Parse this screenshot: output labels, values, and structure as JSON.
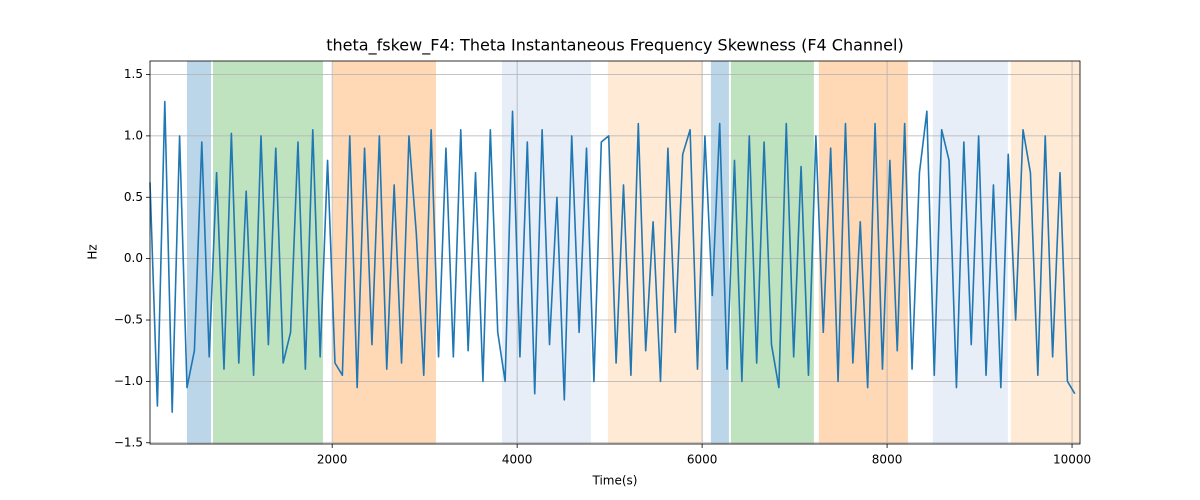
{
  "chart_data": {
    "type": "line",
    "title": "theta_fskew_F4: Theta Instantaneous Frequency Skewness (F4 Channel)",
    "x_label": "Time(s)",
    "y_label": "Hz",
    "xlim": [
      30,
      10086
    ],
    "ylim": [
      -1.51,
      1.61
    ],
    "xticks": [
      2000,
      4000,
      6000,
      8000,
      10000
    ],
    "yticks": [
      {
        "value": -1.5,
        "label": "−1.5"
      },
      {
        "value": -1.0,
        "label": "−1.0"
      },
      {
        "value": -0.5,
        "label": "−0.5"
      },
      {
        "value": 0.0,
        "label": "0.0"
      },
      {
        "value": 0.5,
        "label": "0.5"
      },
      {
        "value": 1.0,
        "label": "1.0"
      },
      {
        "value": 1.5,
        "label": "1.5"
      }
    ],
    "grid": true,
    "spans": [
      {
        "start": 430,
        "end": 690,
        "color": "#1f77b4",
        "opacity": 0.3
      },
      {
        "start": 711,
        "end": 1900,
        "color": "#2ca02c",
        "opacity": 0.3
      },
      {
        "start": 2008,
        "end": 3122,
        "color": "#ff7f0e",
        "opacity": 0.3
      },
      {
        "start": 3835,
        "end": 4797,
        "color": "#aec7e8",
        "opacity": 0.3
      },
      {
        "start": 4981,
        "end": 5998,
        "color": "#ffbb78",
        "opacity": 0.3
      },
      {
        "start": 6095,
        "end": 6290,
        "color": "#1f77b4",
        "opacity": 0.3
      },
      {
        "start": 6311,
        "end": 7208,
        "color": "#2ca02c",
        "opacity": 0.3
      },
      {
        "start": 7262,
        "end": 8225,
        "color": "#ff7f0e",
        "opacity": 0.3
      },
      {
        "start": 8495,
        "end": 9306,
        "color": "#aec7e8",
        "opacity": 0.3
      },
      {
        "start": 9338,
        "end": 10086,
        "color": "#ffbb78",
        "opacity": 0.3
      }
    ],
    "x": [
      30,
      110,
      190,
      270,
      350,
      430,
      510,
      590,
      670,
      750,
      830,
      910,
      990,
      1070,
      1150,
      1230,
      1310,
      1390,
      1470,
      1550,
      1630,
      1710,
      1790,
      1870,
      1950,
      2030,
      2110,
      2190,
      2270,
      2350,
      2430,
      2510,
      2590,
      2670,
      2750,
      2830,
      2910,
      2990,
      3070,
      3150,
      3230,
      3310,
      3390,
      3470,
      3550,
      3630,
      3710,
      3790,
      3870,
      3950,
      4030,
      4110,
      4190,
      4270,
      4350,
      4430,
      4510,
      4590,
      4670,
      4750,
      4830,
      4910,
      4990,
      5070,
      5150,
      5230,
      5310,
      5390,
      5470,
      5550,
      5630,
      5710,
      5790,
      5870,
      5950,
      6030,
      6110,
      6190,
      6270,
      6350,
      6430,
      6510,
      6590,
      6670,
      6750,
      6830,
      6910,
      6990,
      7070,
      7150,
      7230,
      7310,
      7390,
      7470,
      7550,
      7630,
      7710,
      7790,
      7870,
      7950,
      8030,
      8110,
      8190,
      8270,
      8350,
      8430,
      8510,
      8590,
      8670,
      8750,
      8830,
      8910,
      8990,
      9070,
      9150,
      9230,
      9310,
      9390,
      9470,
      9550,
      9630,
      9710,
      9790,
      9870,
      9950,
      10030
    ],
    "series": [
      {
        "color": "#1f77b4",
        "values": [
          0.62,
          -1.2,
          1.28,
          -1.25,
          1.0,
          -1.05,
          -0.75,
          0.95,
          -0.8,
          0.7,
          -0.9,
          1.02,
          -0.85,
          0.55,
          -0.95,
          1.0,
          -0.7,
          0.9,
          -0.85,
          -0.6,
          0.95,
          -0.9,
          1.05,
          -0.8,
          0.8,
          -0.85,
          -0.95,
          1.0,
          -1.05,
          0.9,
          -0.7,
          1.0,
          -0.9,
          0.6,
          -0.85,
          1.0,
          0.2,
          -0.95,
          1.05,
          -0.8,
          0.9,
          -0.8,
          1.05,
          -0.75,
          0.7,
          -1.0,
          1.05,
          -0.6,
          -1.0,
          1.2,
          -0.8,
          0.95,
          -1.1,
          1.05,
          -0.7,
          0.5,
          -1.15,
          1.0,
          -0.6,
          0.9,
          -1.0,
          0.95,
          1.0,
          -0.85,
          0.6,
          -0.95,
          1.1,
          -0.75,
          0.3,
          -1.0,
          0.9,
          -0.6,
          0.85,
          1.05,
          -0.9,
          1.0,
          -0.3,
          1.1,
          -0.9,
          0.8,
          -1.0,
          1.0,
          -0.85,
          0.95,
          -0.7,
          -1.05,
          1.1,
          -0.8,
          0.75,
          -0.95,
          1.0,
          -0.6,
          0.9,
          -1.0,
          1.1,
          -0.85,
          0.3,
          -1.05,
          1.1,
          -0.9,
          0.8,
          -0.75,
          1.1,
          -0.9,
          0.7,
          1.2,
          -0.95,
          1.05,
          0.8,
          -1.05,
          0.95,
          -0.7,
          1.0,
          -0.95,
          0.6,
          -1.05,
          0.85,
          -0.5,
          1.05,
          0.7,
          -0.95,
          1.0,
          -0.8,
          0.7,
          -1.0,
          -1.1
        ]
      }
    ]
  }
}
